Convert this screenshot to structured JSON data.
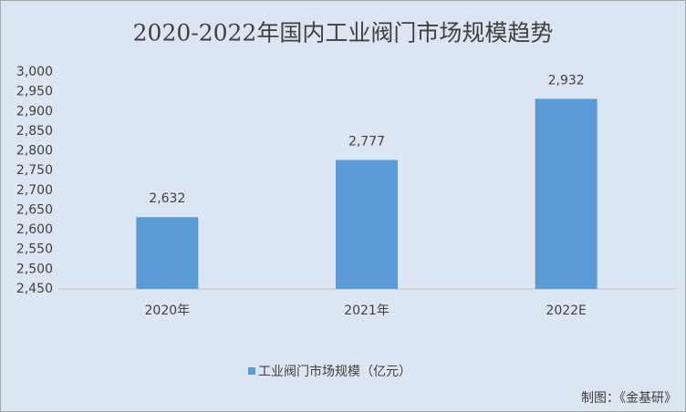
{
  "chart_data": {
    "type": "bar",
    "title": "2020-2022年国内工业阀门市场规模趋势",
    "categories": [
      "2020年",
      "2021年",
      "2022E"
    ],
    "series": [
      {
        "name": "工业阀门市场规模（亿元）",
        "color": "#5b9bd5",
        "values": [
          2632,
          2777,
          2932
        ],
        "value_labels": [
          "2,632",
          "2,777",
          "2,932"
        ]
      }
    ],
    "ylim": [
      2450,
      3000
    ],
    "yticks": [
      {
        "value": 2450,
        "label": "2,450"
      },
      {
        "value": 2500,
        "label": "2,500"
      },
      {
        "value": 2550,
        "label": "2,550"
      },
      {
        "value": 2600,
        "label": "2,600"
      },
      {
        "value": 2650,
        "label": "2,650"
      },
      {
        "value": 2700,
        "label": "2,700"
      },
      {
        "value": 2750,
        "label": "2,750"
      },
      {
        "value": 2800,
        "label": "2,800"
      },
      {
        "value": 2850,
        "label": "2,850"
      },
      {
        "value": 2900,
        "label": "2,900"
      },
      {
        "value": 2950,
        "label": "2,950"
      },
      {
        "value": 3000,
        "label": "3,000"
      }
    ],
    "grid": false,
    "legend": "bottom",
    "source": "制图：《金基研》"
  }
}
